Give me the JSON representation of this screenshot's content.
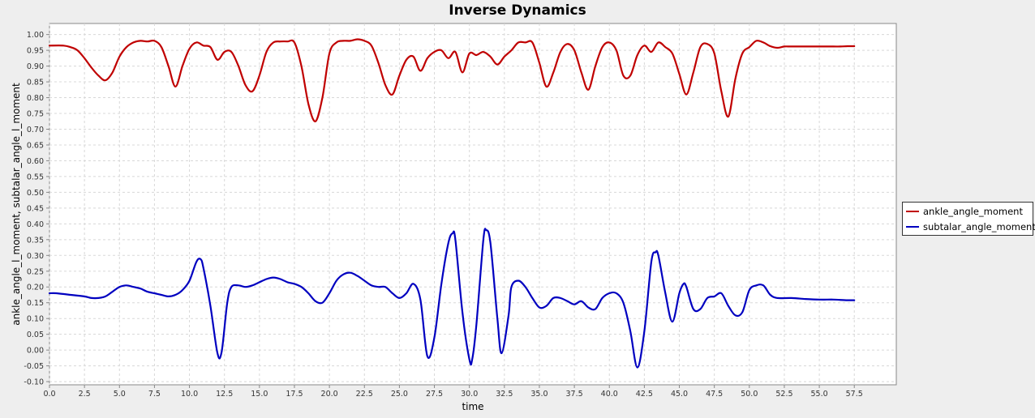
{
  "chart_data": {
    "type": "line",
    "title": "Inverse Dynamics",
    "xlabel": "time",
    "ylabel": "ankle_angle_l_moment, subtalar_angle_l_moment",
    "xlim": [
      0,
      60.5
    ],
    "ylim": [
      -0.11,
      1.035
    ],
    "x_ticks": [
      "0.0",
      "2.5",
      "5.0",
      "7.5",
      "10.0",
      "12.5",
      "15.0",
      "17.5",
      "20.0",
      "22.5",
      "25.0",
      "27.5",
      "30.0",
      "32.5",
      "35.0",
      "37.5",
      "40.0",
      "42.5",
      "45.0",
      "47.5",
      "50.0",
      "52.5",
      "55.0",
      "57.5"
    ],
    "y_ticks": [
      "-0.10",
      "-0.05",
      "0.00",
      "0.05",
      "0.10",
      "0.15",
      "0.20",
      "0.25",
      "0.30",
      "0.35",
      "0.40",
      "0.45",
      "0.50",
      "0.55",
      "0.60",
      "0.65",
      "0.70",
      "0.75",
      "0.80",
      "0.85",
      "0.90",
      "0.95",
      "1.00"
    ],
    "grid": true,
    "legend_position": "right",
    "series": [
      {
        "name": "ankle_angle_moment",
        "color": "#c00000",
        "x": [
          0,
          1,
          1.5,
          2,
          2.5,
          3,
          3.5,
          4,
          4.5,
          5,
          5.5,
          6,
          6.5,
          7,
          7.5,
          8,
          8.5,
          9,
          9.5,
          10,
          10.5,
          11,
          11.5,
          12,
          12.5,
          13,
          13.5,
          14,
          14.5,
          15,
          15.5,
          16,
          16.5,
          17,
          17.5,
          18,
          18.5,
          19,
          19.5,
          20,
          20.5,
          21,
          21.5,
          22,
          22.5,
          23,
          23.5,
          24,
          24.5,
          25,
          25.5,
          26,
          26.5,
          27,
          27.5,
          28,
          28.5,
          29,
          29.5,
          30,
          30.5,
          31,
          31.5,
          32,
          32.5,
          33,
          33.5,
          34,
          34.5,
          35,
          35.5,
          36,
          36.5,
          37,
          37.5,
          38,
          38.5,
          39,
          39.5,
          40,
          40.5,
          41,
          41.5,
          42,
          42.5,
          43,
          43.5,
          44,
          44.5,
          45,
          45.5,
          46,
          46.5,
          47,
          47.5,
          48,
          48.5,
          49,
          49.5,
          50,
          50.5,
          51,
          51.5,
          52,
          52.5,
          53,
          54,
          55,
          56,
          56.5,
          57,
          57.5
        ],
        "values": [
          0.965,
          0.965,
          0.96,
          0.95,
          0.925,
          0.895,
          0.87,
          0.855,
          0.88,
          0.93,
          0.96,
          0.975,
          0.98,
          0.978,
          0.98,
          0.96,
          0.9,
          0.835,
          0.9,
          0.955,
          0.975,
          0.965,
          0.96,
          0.92,
          0.945,
          0.945,
          0.9,
          0.84,
          0.82,
          0.87,
          0.945,
          0.975,
          0.978,
          0.978,
          0.975,
          0.9,
          0.78,
          0.725,
          0.8,
          0.94,
          0.975,
          0.98,
          0.98,
          0.985,
          0.98,
          0.965,
          0.91,
          0.84,
          0.81,
          0.87,
          0.92,
          0.93,
          0.885,
          0.925,
          0.945,
          0.95,
          0.925,
          0.945,
          0.88,
          0.94,
          0.935,
          0.945,
          0.93,
          0.905,
          0.93,
          0.95,
          0.975,
          0.975,
          0.975,
          0.91,
          0.835,
          0.88,
          0.945,
          0.97,
          0.95,
          0.88,
          0.825,
          0.9,
          0.96,
          0.975,
          0.95,
          0.87,
          0.87,
          0.935,
          0.965,
          0.945,
          0.975,
          0.96,
          0.94,
          0.875,
          0.81,
          0.88,
          0.96,
          0.97,
          0.94,
          0.82,
          0.74,
          0.86,
          0.94,
          0.96,
          0.98,
          0.975,
          0.963,
          0.958,
          0.962,
          0.962,
          0.962,
          0.962,
          0.962,
          0.962,
          0.963,
          0.963
        ]
      },
      {
        "name": "subtalar_angle_moment",
        "color": "#0000c0",
        "x": [
          0,
          0.5,
          1.5,
          2.5,
          3,
          3.5,
          4,
          4.5,
          5,
          5.5,
          6,
          6.5,
          7,
          7.5,
          8,
          8.5,
          9,
          9.5,
          10,
          10.5,
          10.8,
          11,
          11.5,
          12,
          12.3,
          12.7,
          13,
          13.5,
          14,
          14.5,
          15,
          15.5,
          16,
          16.5,
          17,
          17.5,
          18,
          18.5,
          19,
          19.5,
          20,
          20.5,
          21,
          21.5,
          22,
          22.5,
          23,
          23.5,
          24,
          24.5,
          25,
          25.5,
          26,
          26.5,
          27,
          27.5,
          28,
          28.5,
          28.8,
          29,
          29.5,
          30,
          30.2,
          30.5,
          31,
          31.2,
          31.5,
          32,
          32.3,
          32.8,
          33,
          33.5,
          34,
          34.5,
          35,
          35.5,
          36,
          36.5,
          37,
          37.5,
          38,
          38.5,
          39,
          39.5,
          40,
          40.5,
          41,
          41.5,
          42,
          42.5,
          43,
          43.3,
          43.5,
          44,
          44.5,
          45,
          45.3,
          45.5,
          46,
          46.5,
          47,
          47.5,
          48,
          48.5,
          49,
          49.5,
          50,
          50.5,
          51,
          51.5,
          52,
          53,
          54,
          55,
          56,
          57,
          57.5
        ],
        "values": [
          0.18,
          0.18,
          0.175,
          0.17,
          0.165,
          0.165,
          0.17,
          0.185,
          0.2,
          0.205,
          0.2,
          0.195,
          0.185,
          0.18,
          0.175,
          0.17,
          0.175,
          0.19,
          0.22,
          0.28,
          0.288,
          0.26,
          0.14,
          -0.01,
          -0.005,
          0.15,
          0.2,
          0.205,
          0.2,
          0.205,
          0.215,
          0.225,
          0.23,
          0.225,
          0.215,
          0.21,
          0.2,
          0.18,
          0.155,
          0.15,
          0.18,
          0.22,
          0.24,
          0.245,
          0.235,
          0.22,
          0.205,
          0.2,
          0.2,
          0.18,
          0.165,
          0.18,
          0.21,
          0.16,
          -0.02,
          0.04,
          0.21,
          0.34,
          0.37,
          0.35,
          0.12,
          -0.03,
          -0.03,
          0.08,
          0.35,
          0.38,
          0.34,
          0.1,
          -0.01,
          0.11,
          0.2,
          0.22,
          0.2,
          0.165,
          0.135,
          0.14,
          0.165,
          0.165,
          0.155,
          0.145,
          0.155,
          0.135,
          0.13,
          0.165,
          0.18,
          0.18,
          0.15,
          0.06,
          -0.055,
          0.06,
          0.28,
          0.31,
          0.3,
          0.18,
          0.09,
          0.18,
          0.21,
          0.2,
          0.13,
          0.13,
          0.165,
          0.17,
          0.18,
          0.14,
          0.11,
          0.12,
          0.19,
          0.205,
          0.205,
          0.175,
          0.165,
          0.165,
          0.162,
          0.16,
          0.16,
          0.158,
          0.158
        ]
      }
    ]
  }
}
